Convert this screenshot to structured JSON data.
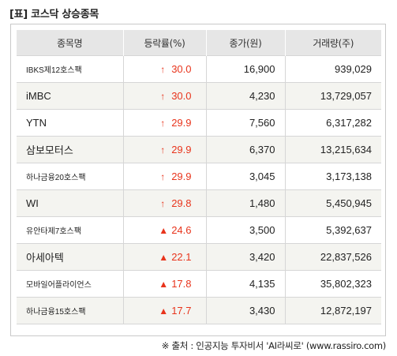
{
  "title": "[표] 코스닥 상승종목",
  "headers": {
    "name": "종목명",
    "rate": "등락률(%)",
    "price": "종가(원)",
    "volume": "거래량(주)"
  },
  "rows": [
    {
      "name": "IBKS제12호스팩",
      "rate": "30.0",
      "price": "16,900",
      "volume": "939,029",
      "marker": "arrow-up-icon"
    },
    {
      "name": "iMBC",
      "rate": "30.0",
      "price": "4,230",
      "volume": "13,729,057",
      "marker": "arrow-up-icon"
    },
    {
      "name": "YTN",
      "rate": "29.9",
      "price": "7,560",
      "volume": "6,317,282",
      "marker": "arrow-up-icon"
    },
    {
      "name": "삼보모터스",
      "rate": "29.9",
      "price": "6,370",
      "volume": "13,215,634",
      "marker": "arrow-up-icon"
    },
    {
      "name": "하나금융20호스팩",
      "rate": "29.9",
      "price": "3,045",
      "volume": "3,173,138",
      "marker": "arrow-up-icon"
    },
    {
      "name": "WI",
      "rate": "29.8",
      "price": "1,480",
      "volume": "5,450,945",
      "marker": "arrow-up-icon"
    },
    {
      "name": "유안타제7호스팩",
      "rate": "24.6",
      "price": "3,500",
      "volume": "5,392,637",
      "marker": "triangle-up-icon"
    },
    {
      "name": "아세아텍",
      "rate": "22.1",
      "price": "3,420",
      "volume": "22,837,526",
      "marker": "triangle-up-icon"
    },
    {
      "name": "모바일어플라이언스",
      "rate": "17.8",
      "price": "4,135",
      "volume": "35,802,323",
      "marker": "triangle-up-icon"
    },
    {
      "name": "하나금융15호스팩",
      "rate": "17.7",
      "price": "3,430",
      "volume": "12,872,197",
      "marker": "triangle-up-icon"
    }
  ],
  "footer": "※ 출처 : 인공지능 투자비서 'AI라씨로' (www.rassiro.com)",
  "colors": {
    "up": "#e8341c",
    "header_bg": "#e6e6e6",
    "alt_row_bg": "#f4f4f0"
  }
}
